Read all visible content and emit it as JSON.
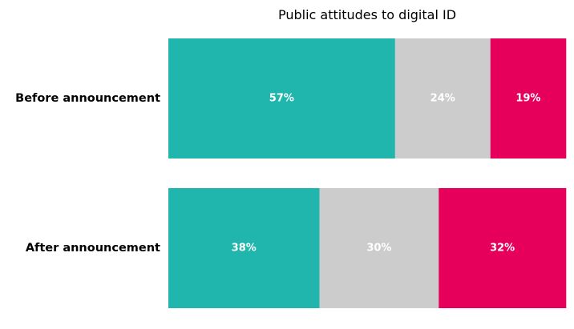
{
  "chart_data": {
    "type": "bar",
    "orientation": "horizontal",
    "stacked": true,
    "normalized": true,
    "title": "Public attitudes to digital ID",
    "xlabel": "",
    "ylabel": "",
    "xlim": [
      0,
      100
    ],
    "grid": false,
    "legend": "none",
    "categories": [
      "Before announcement",
      "After announcement"
    ],
    "series": [
      {
        "values": [
          57,
          38
        ],
        "labels": [
          "57%",
          "38%"
        ],
        "color": "#20b5ad"
      },
      {
        "values": [
          24,
          30
        ],
        "labels": [
          "24%",
          "30%"
        ],
        "color": "#cccccc"
      },
      {
        "values": [
          19,
          32
        ],
        "labels": [
          "19%",
          "32%"
        ],
        "color": "#e6005c"
      }
    ]
  }
}
